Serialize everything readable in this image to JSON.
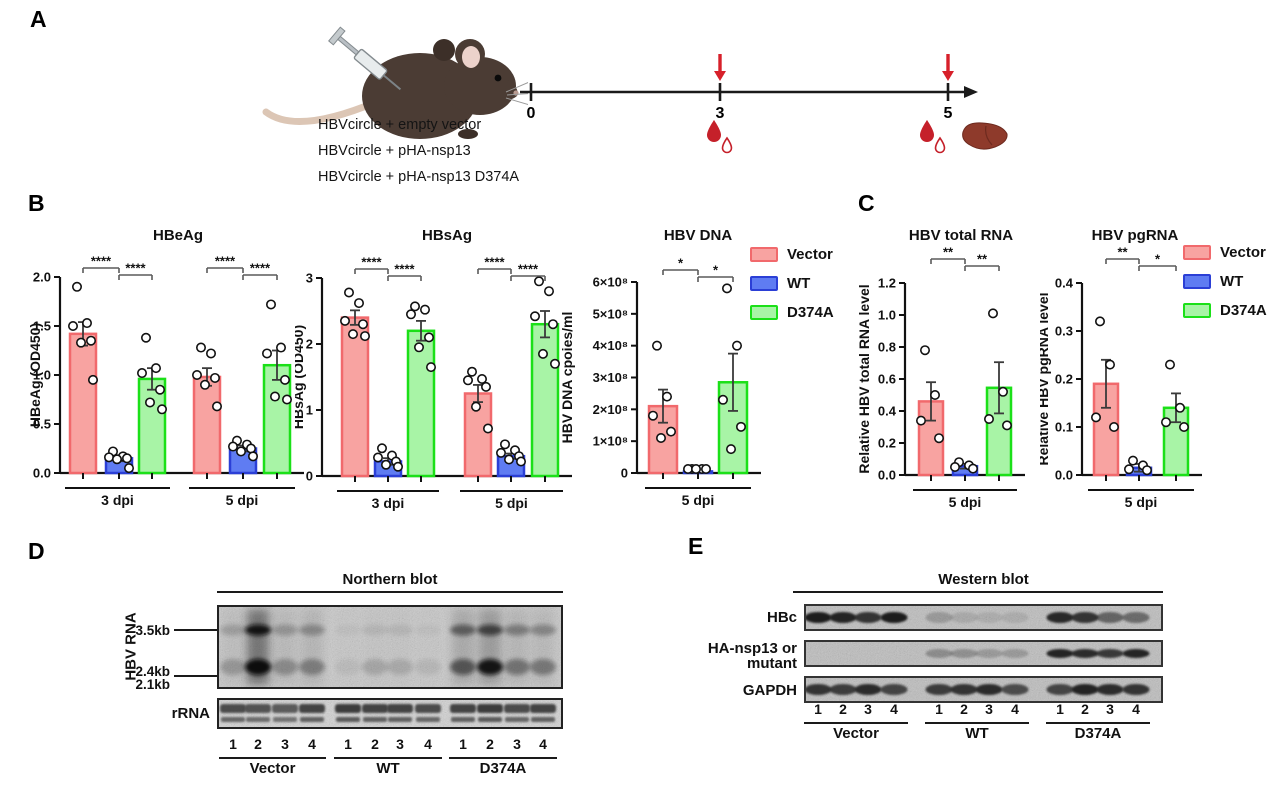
{
  "figure": {
    "panel_labels": {
      "a": "A",
      "b": "B",
      "c": "C",
      "d": "D",
      "e": "E"
    }
  },
  "panel_a": {
    "injection_groups": [
      "HBVcircle + empty vector",
      "HBVcircle + pHA-nsp13",
      "HBVcircle + pHA-nsp13 D374A"
    ],
    "timeline_ticks": [
      "0",
      "3",
      "5"
    ],
    "icons": [
      "syringe-icon",
      "mouse-illustration",
      "injection-arrow-icon",
      "blood-drop-icon",
      "liver-icon"
    ],
    "arrow_color": "#D7202A",
    "drop_color": "#C5202A",
    "liver_color": "#8E3A2B"
  },
  "series_colors": {
    "Vector": {
      "fill": "#F8A3A1",
      "stroke": "#F1696C"
    },
    "WT": {
      "fill": "#5F7CF2",
      "stroke": "#2B3FD6"
    },
    "D374A": {
      "fill": "#A8F4A6",
      "stroke": "#1BE018"
    }
  },
  "legend": {
    "items": [
      {
        "label": "Vector"
      },
      {
        "label": "WT"
      },
      {
        "label": "D374A"
      }
    ]
  },
  "chart_data": [
    {
      "id": "hbeag",
      "type": "bar",
      "title": "HBeAg",
      "ylabel": "HBeAg (OD450)",
      "ymax": 2.0,
      "ytick_labels": [
        "0.0",
        "0.5",
        "1.0",
        "1.5",
        "2.0"
      ],
      "grid": false,
      "groups": [
        {
          "label": "3 dpi",
          "bars": [
            {
              "series": "Vector",
              "mean": 1.42,
              "sem": 0.12,
              "points": [
                1.9,
                1.53,
                1.5,
                1.35,
                1.33,
                0.95
              ]
            },
            {
              "series": "WT",
              "mean": 0.15,
              "sem": 0.03,
              "points": [
                0.22,
                0.17,
                0.16,
                0.15,
                0.14,
                0.05
              ]
            },
            {
              "series": "D374A",
              "mean": 0.96,
              "sem": 0.11,
              "points": [
                1.38,
                1.07,
                1.02,
                0.85,
                0.72,
                0.65
              ]
            }
          ]
        },
        {
          "label": "5 dpi",
          "bars": [
            {
              "series": "Vector",
              "mean": 0.98,
              "sem": 0.09,
              "points": [
                1.28,
                1.22,
                1.0,
                0.97,
                0.9,
                0.68
              ]
            },
            {
              "series": "WT",
              "mean": 0.25,
              "sem": 0.03,
              "points": [
                0.33,
                0.29,
                0.27,
                0.25,
                0.22,
                0.17
              ]
            },
            {
              "series": "D374A",
              "mean": 1.1,
              "sem": 0.15,
              "points": [
                1.72,
                1.28,
                1.22,
                0.95,
                0.78,
                0.75
              ]
            }
          ]
        }
      ],
      "significance": [
        {
          "group": 0,
          "a": 0,
          "b": 1,
          "label": "****"
        },
        {
          "group": 0,
          "a": 1,
          "b": 2,
          "label": "****"
        },
        {
          "group": 1,
          "a": 0,
          "b": 1,
          "label": "****"
        },
        {
          "group": 1,
          "a": 1,
          "b": 2,
          "label": "****"
        }
      ]
    },
    {
      "id": "hbsag",
      "type": "bar",
      "title": "HBsAg",
      "ylabel": "HBsAg (OD450)",
      "ymax": 3.0,
      "ytick_labels": [
        "0",
        "1",
        "2",
        "3"
      ],
      "grid": false,
      "groups": [
        {
          "label": "3 dpi",
          "bars": [
            {
              "series": "Vector",
              "mean": 2.4,
              "sem": 0.11,
              "points": [
                2.78,
                2.62,
                2.35,
                2.3,
                2.15,
                2.12
              ]
            },
            {
              "series": "WT",
              "mean": 0.22,
              "sem": 0.05,
              "points": [
                0.42,
                0.31,
                0.28,
                0.22,
                0.17,
                0.14
              ]
            },
            {
              "series": "D374A",
              "mean": 2.2,
              "sem": 0.15,
              "points": [
                2.57,
                2.52,
                2.45,
                2.1,
                1.95,
                1.65
              ]
            }
          ]
        },
        {
          "label": "5 dpi",
          "bars": [
            {
              "series": "Vector",
              "mean": 1.25,
              "sem": 0.13,
              "points": [
                1.58,
                1.47,
                1.45,
                1.35,
                1.05,
                0.72
              ]
            },
            {
              "series": "WT",
              "mean": 0.3,
              "sem": 0.04,
              "points": [
                0.48,
                0.39,
                0.35,
                0.3,
                0.25,
                0.22
              ]
            },
            {
              "series": "D374A",
              "mean": 2.3,
              "sem": 0.2,
              "points": [
                2.95,
                2.8,
                2.42,
                2.3,
                1.85,
                1.7
              ]
            }
          ]
        }
      ],
      "significance": [
        {
          "group": 0,
          "a": 0,
          "b": 1,
          "label": "****"
        },
        {
          "group": 0,
          "a": 1,
          "b": 2,
          "label": "****"
        },
        {
          "group": 1,
          "a": 0,
          "b": 1,
          "label": "****"
        },
        {
          "group": 1,
          "a": 1,
          "b": 2,
          "label": "****"
        }
      ]
    },
    {
      "id": "hbvdna",
      "type": "bar",
      "title": "HBV DNA",
      "ylabel": "HBV DNA cpoies/ml",
      "ymax": 600000000.0,
      "ytick_labels": [
        "0",
        "1×10⁸",
        "2×10⁸",
        "3×10⁸",
        "4×10⁸",
        "5×10⁸",
        "6×10⁸"
      ],
      "grid": false,
      "legend": "right",
      "groups": [
        {
          "label": "5 dpi",
          "bars": [
            {
              "series": "Vector",
              "mean": 210000000.0,
              "sem": 52000000.0,
              "points": [
                400000000.0,
                240000000.0,
                180000000.0,
                130000000.0,
                110000000.0
              ]
            },
            {
              "series": "WT",
              "mean": 5000000.0,
              "sem": 2000000.0,
              "points": [
                7000000.0,
                6000000.0,
                5000000.0,
                4000000.0,
                3000000.0
              ]
            },
            {
              "series": "D374A",
              "mean": 285000000.0,
              "sem": 90000000.0,
              "points": [
                580000000.0,
                400000000.0,
                230000000.0,
                145000000.0,
                75000000.0
              ]
            }
          ]
        }
      ],
      "significance": [
        {
          "group": 0,
          "a": 0,
          "b": 1,
          "label": "*"
        },
        {
          "group": 0,
          "a": 1,
          "b": 2,
          "label": "*"
        }
      ]
    },
    {
      "id": "totalrna",
      "type": "bar",
      "title": "HBV total RNA",
      "ylabel": "Relative HBV total RNA level",
      "ymax": 1.2,
      "ytick_labels": [
        "0.0",
        "0.2",
        "0.4",
        "0.6",
        "0.8",
        "1.0",
        "1.2"
      ],
      "grid": false,
      "groups": [
        {
          "label": "5 dpi",
          "bars": [
            {
              "series": "Vector",
              "mean": 0.46,
              "sem": 0.12,
              "points": [
                0.78,
                0.5,
                0.34,
                0.23
              ]
            },
            {
              "series": "WT",
              "mean": 0.055,
              "sem": 0.015,
              "points": [
                0.08,
                0.06,
                0.05,
                0.04
              ]
            },
            {
              "series": "D374A",
              "mean": 0.545,
              "sem": 0.16,
              "points": [
                1.01,
                0.52,
                0.35,
                0.31
              ]
            }
          ]
        }
      ],
      "significance": [
        {
          "group": 0,
          "a": 0,
          "b": 1,
          "label": "**"
        },
        {
          "group": 0,
          "a": 1,
          "b": 2,
          "label": "**"
        }
      ]
    },
    {
      "id": "pgrna",
      "type": "bar",
      "title": "HBV pgRNA",
      "ylabel": "Relative HBV pgRNA level",
      "ymax": 0.4,
      "ytick_labels": [
        "0.0",
        "0.1",
        "0.2",
        "0.3",
        "0.4"
      ],
      "grid": false,
      "legend": "right",
      "groups": [
        {
          "label": "5 dpi",
          "bars": [
            {
              "series": "Vector",
              "mean": 0.19,
              "sem": 0.05,
              "points": [
                0.32,
                0.23,
                0.12,
                0.1
              ]
            },
            {
              "series": "WT",
              "mean": 0.015,
              "sem": 0.008,
              "points": [
                0.03,
                0.02,
                0.012,
                0.01
              ]
            },
            {
              "series": "D374A",
              "mean": 0.14,
              "sem": 0.03,
              "points": [
                0.23,
                0.14,
                0.11,
                0.1
              ]
            }
          ]
        }
      ],
      "significance": [
        {
          "group": 0,
          "a": 0,
          "b": 1,
          "label": "**"
        },
        {
          "group": 0,
          "a": 1,
          "b": 2,
          "label": "*"
        }
      ]
    }
  ],
  "panel_d": {
    "heading": "Northern blot",
    "side_label": "HBV RNA",
    "size_markers": [
      "3.5kb",
      "2.4kb",
      "2.1kb"
    ],
    "rrna_label": "rRNA",
    "lane_numbers": [
      "1",
      "2",
      "3",
      "4"
    ],
    "group_labels": [
      "Vector",
      "WT",
      "D374A"
    ],
    "northern_lanes": [
      {
        "u": 0.18,
        "l": 0.22,
        "s": 0.1
      },
      {
        "u": 0.95,
        "l": 1.0,
        "s": 0.85
      },
      {
        "u": 0.22,
        "l": 0.28,
        "s": 0.14
      },
      {
        "u": 0.28,
        "l": 0.34,
        "s": 0.18
      },
      {
        "u": 0.04,
        "l": 0.06,
        "s": 0.02
      },
      {
        "u": 0.08,
        "l": 0.16,
        "s": 0.04
      },
      {
        "u": 0.08,
        "l": 0.14,
        "s": 0.04
      },
      {
        "u": 0.04,
        "l": 0.08,
        "s": 0.02
      },
      {
        "u": 0.5,
        "l": 0.55,
        "s": 0.3
      },
      {
        "u": 0.65,
        "l": 0.95,
        "s": 0.45
      },
      {
        "u": 0.35,
        "l": 0.4,
        "s": 0.18
      },
      {
        "u": 0.3,
        "l": 0.38,
        "s": 0.15
      }
    ],
    "rrna_lanes": [
      0.85,
      0.8,
      0.75,
      0.9,
      0.95,
      0.9,
      0.9,
      0.85,
      0.9,
      0.95,
      0.85,
      0.9
    ]
  },
  "panel_e": {
    "heading": "Western blot",
    "lane_numbers": [
      "1",
      "2",
      "3",
      "4"
    ],
    "group_labels": [
      "Vector",
      "WT",
      "D374A"
    ],
    "rows": [
      {
        "label_lines": [
          "HBc"
        ],
        "bands": [
          1,
          0.95,
          0.85,
          1,
          0.22,
          0.12,
          0.1,
          0.1,
          0.92,
          0.85,
          0.55,
          0.5
        ]
      },
      {
        "label_lines": [
          "HA-nsp13 or",
          "mutant"
        ],
        "bands": [
          0,
          0,
          0,
          0,
          0.3,
          0.28,
          0.22,
          0.22,
          0.95,
          0.9,
          0.82,
          0.95
        ]
      },
      {
        "label_lines": [
          "GAPDH"
        ],
        "bands": [
          0.85,
          0.8,
          0.9,
          0.75,
          0.8,
          0.85,
          0.9,
          0.7,
          0.75,
          0.95,
          0.9,
          0.85
        ]
      }
    ]
  }
}
